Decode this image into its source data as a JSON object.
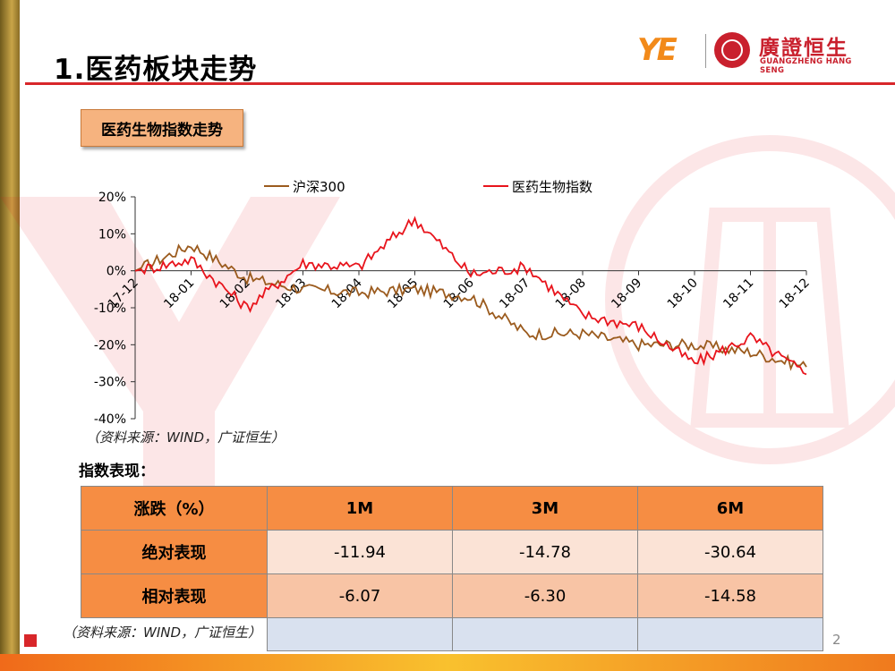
{
  "title": "1.医药板块走势",
  "logo": {
    "mark": "YE",
    "name_cn": "廣證恒生",
    "name_en": "GUANGZHENG HANG SENG"
  },
  "section_label": "医药生物指数走势",
  "chart_data": {
    "type": "line",
    "x": [
      "17-12",
      "18-01",
      "18-02",
      "18-03",
      "18-04",
      "18-05",
      "18-06",
      "18-07",
      "18-08",
      "18-09",
      "18-10",
      "18-11",
      "18-12"
    ],
    "ylim": [
      -40,
      20
    ],
    "y_ticks": [
      "20%",
      "10%",
      "0%",
      "-10%",
      "-20%",
      "-30%",
      "-40%"
    ],
    "legend_placement": "top",
    "series": [
      {
        "name": "沪深300",
        "color": "#9b5b1e",
        "values": [
          0,
          7,
          -2,
          -5,
          -6,
          -5,
          -7,
          -17,
          -17,
          -20,
          -20,
          -22,
          -26
        ]
      },
      {
        "name": "医药生物指数",
        "color": "#e8141c",
        "values": [
          0,
          3,
          -10,
          2,
          1,
          14,
          -1,
          1,
          -12,
          -15,
          -25,
          -18,
          -28
        ]
      }
    ]
  },
  "chart_source": "（资料来源：WIND，广证恒生）",
  "table_heading": "指数表现：",
  "table": {
    "headers": [
      "涨跌（%）",
      "1M",
      "3M",
      "6M"
    ],
    "rows": [
      {
        "label": "绝对表现",
        "values": [
          "-11.94",
          "-14.78",
          "-30.64"
        ]
      },
      {
        "label": "相对表现",
        "values": [
          "-6.07",
          "-6.30",
          "-14.58"
        ]
      }
    ]
  },
  "table_source": "（资料来源：WIND，广证恒生）",
  "page_number": "2",
  "colors": {
    "accent_red": "#d8262a",
    "table_header": "#f68d43",
    "label_box": "#f6b37f"
  }
}
